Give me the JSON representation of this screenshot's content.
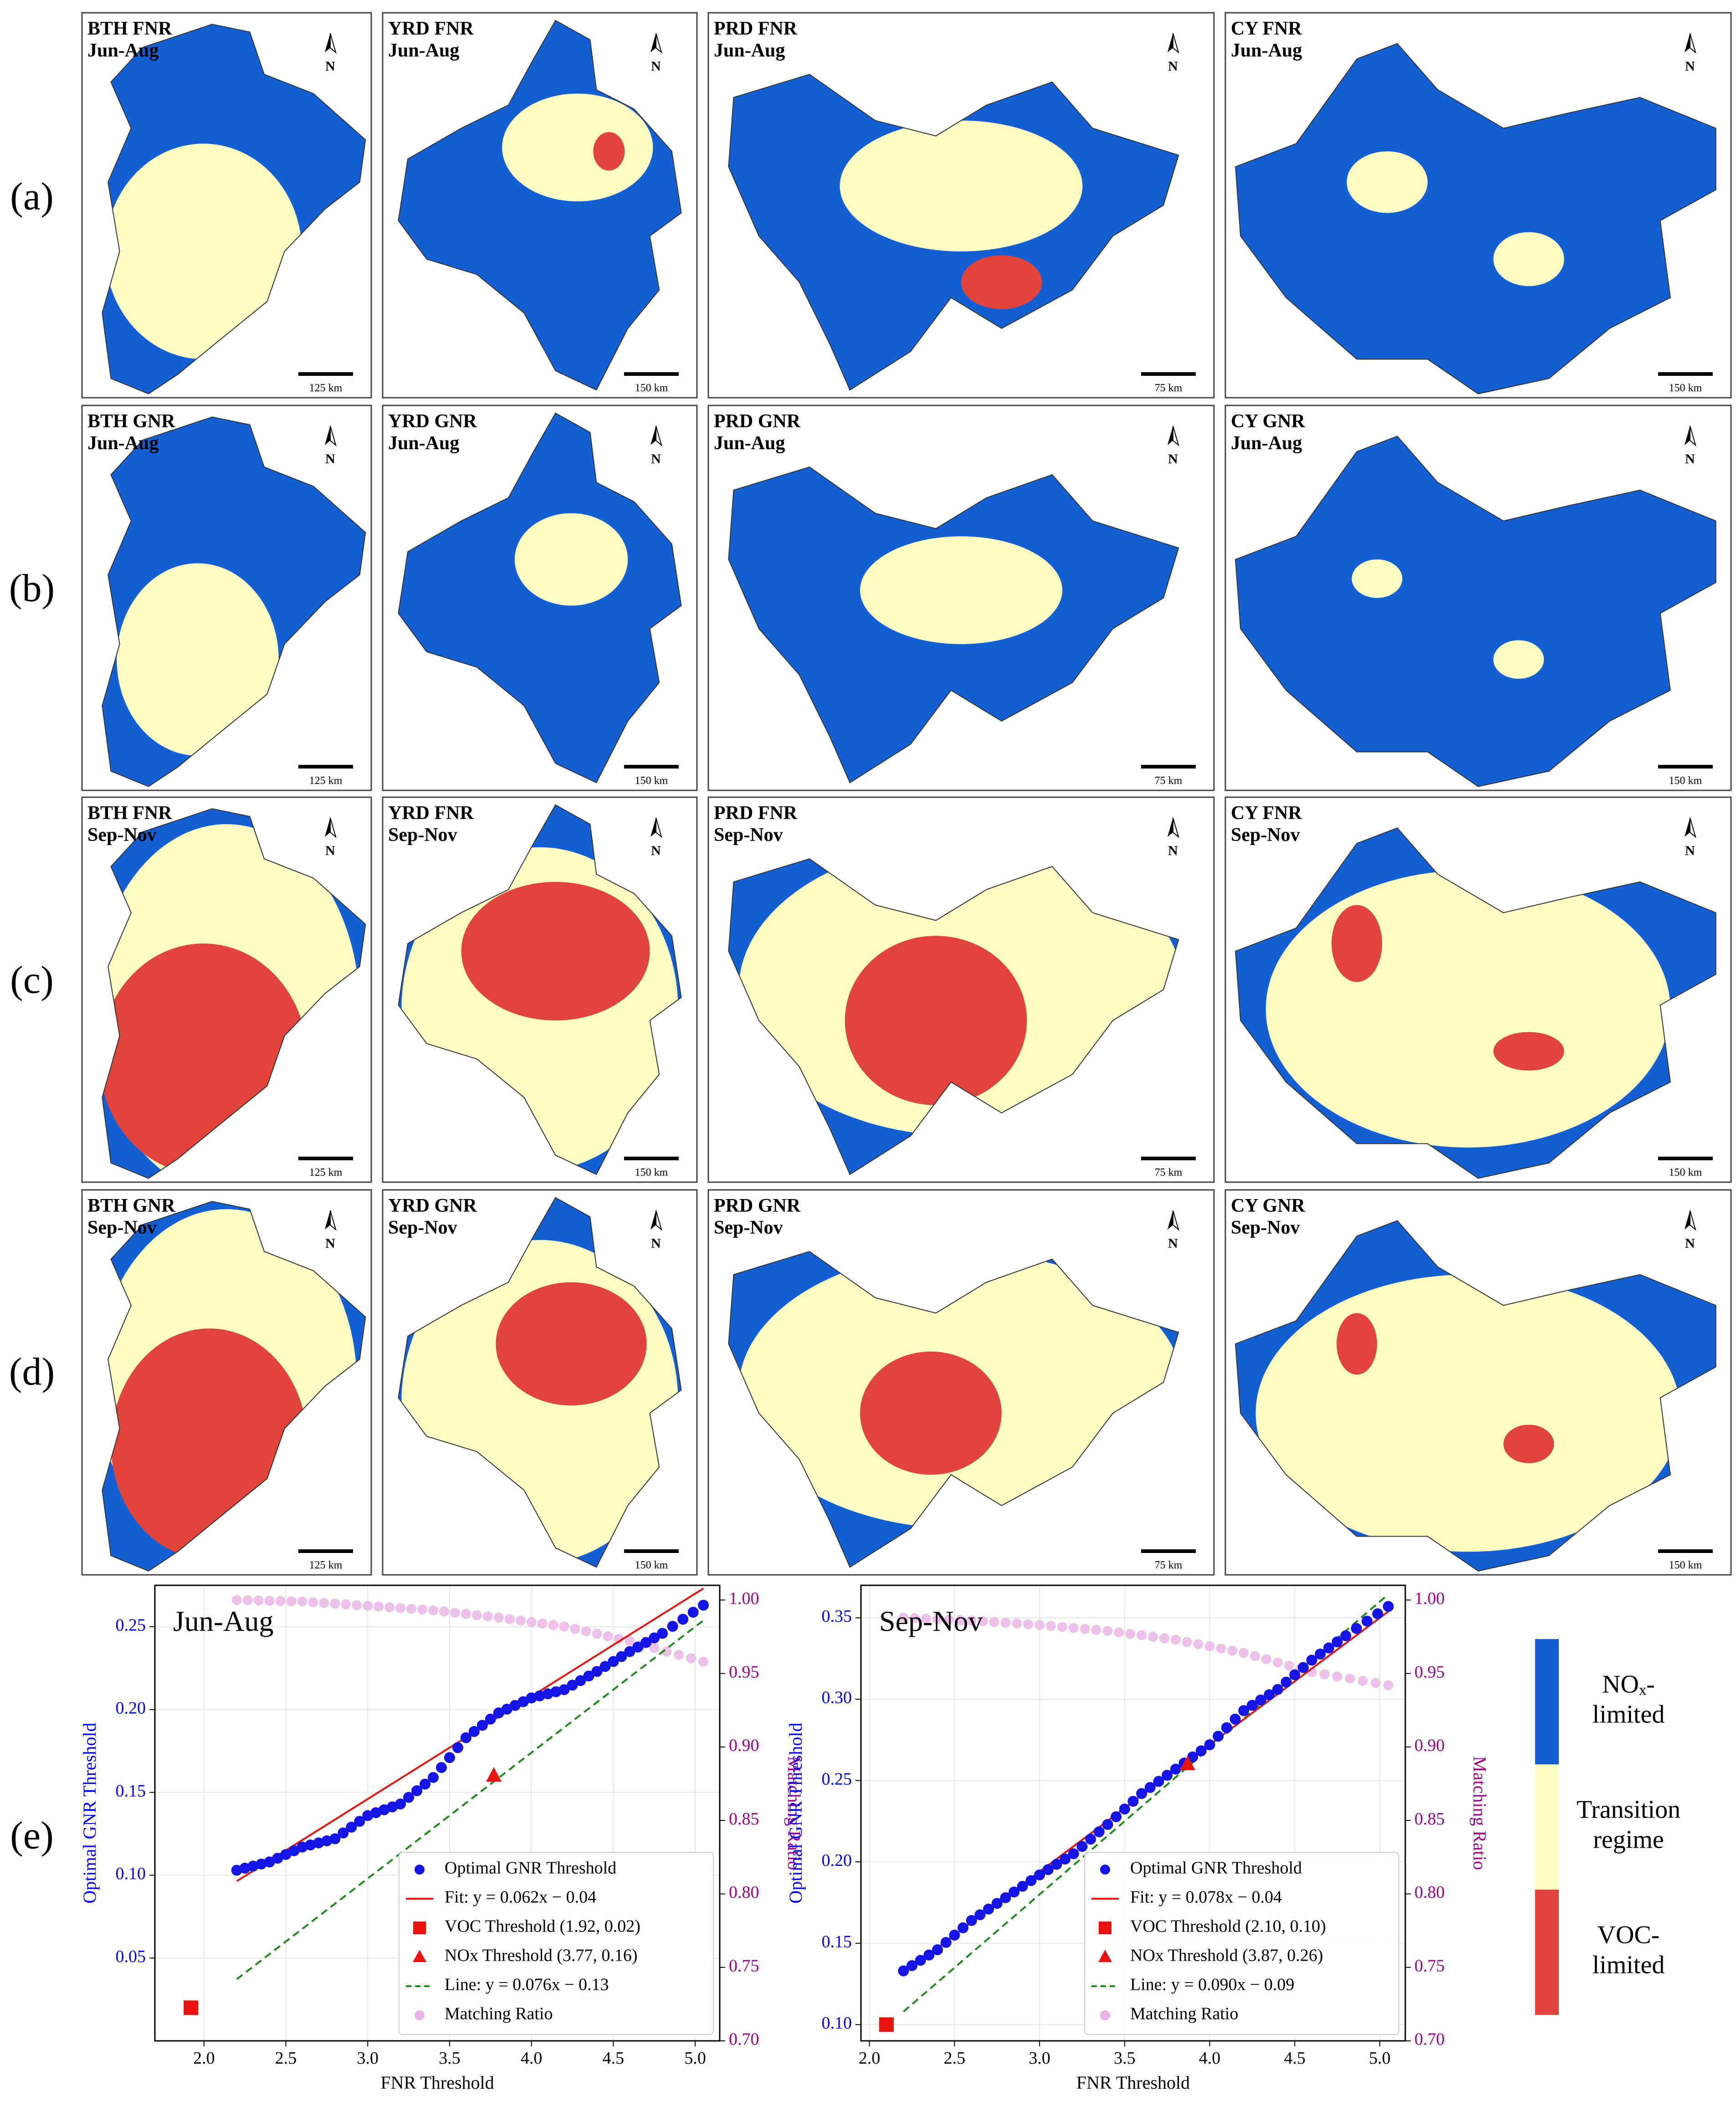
{
  "row_labels": [
    "(a)",
    "(b)",
    "(c)",
    "(d)",
    "(e)"
  ],
  "maps": [
    [
      {
        "region": "BTH",
        "index": "FNR",
        "season": "Jun-Aug",
        "scale": "125 km"
      },
      {
        "region": "YRD",
        "index": "FNR",
        "season": "Jun-Aug",
        "scale": "150 km"
      },
      {
        "region": "PRD",
        "index": "FNR",
        "season": "Jun-Aug",
        "scale": "75 km"
      },
      {
        "region": "CY",
        "index": "FNR",
        "season": "Jun-Aug",
        "scale": "150 km"
      }
    ],
    [
      {
        "region": "BTH",
        "index": "GNR",
        "season": "Jun-Aug",
        "scale": "125 km"
      },
      {
        "region": "YRD",
        "index": "GNR",
        "season": "Jun-Aug",
        "scale": "150 km"
      },
      {
        "region": "PRD",
        "index": "GNR",
        "season": "Jun-Aug",
        "scale": "75 km"
      },
      {
        "region": "CY",
        "index": "GNR",
        "season": "Jun-Aug",
        "scale": "150 km"
      }
    ],
    [
      {
        "region": "BTH",
        "index": "FNR",
        "season": "Sep-Nov",
        "scale": "125 km"
      },
      {
        "region": "YRD",
        "index": "FNR",
        "season": "Sep-Nov",
        "scale": "150 km"
      },
      {
        "region": "PRD",
        "index": "FNR",
        "season": "Sep-Nov",
        "scale": "75 km"
      },
      {
        "region": "CY",
        "index": "FNR",
        "season": "Sep-Nov",
        "scale": "150 km"
      }
    ],
    [
      {
        "region": "BTH",
        "index": "GNR",
        "season": "Sep-Nov",
        "scale": "125 km"
      },
      {
        "region": "YRD",
        "index": "GNR",
        "season": "Sep-Nov",
        "scale": "150 km"
      },
      {
        "region": "PRD",
        "index": "GNR",
        "season": "Sep-Nov",
        "scale": "75 km"
      },
      {
        "region": "CY",
        "index": "GNR",
        "season": "Sep-Nov",
        "scale": "150 km"
      }
    ]
  ],
  "north_label": "N",
  "colors": {
    "nox": "#1260d4",
    "transition": "#fdfdc4",
    "voc": "#e0443a",
    "fit": "#e8130f",
    "line": "#1a8a1a",
    "dots": "#1414e6",
    "ratio": "#e9b3e4",
    "left_axis": "#0000ff",
    "right_axis": "#a0008f"
  },
  "legend_regime": [
    {
      "label": "NOₓ-\nlimited",
      "color": "#1260d4"
    },
    {
      "label": "Transition\nregime",
      "color": "#fdfdc4"
    },
    {
      "label": "VOC-\nlimited",
      "color": "#e0443a"
    }
  ],
  "chart_data": [
    {
      "type": "scatter",
      "title": "Jun-Aug",
      "xlabel": "FNR Threshold",
      "ylabel": "Optimal GNR Threshold",
      "y2label": "Matching Ratio",
      "xlim": [
        1.7,
        5.15
      ],
      "ylim": [
        0.0,
        0.275
      ],
      "y2lim": [
        0.7,
        1.01
      ],
      "xticks": [
        "2.0",
        "2.5",
        "3.0",
        "3.5",
        "4.0",
        "4.5",
        "5.0"
      ],
      "yticks": [
        "0.05",
        "0.10",
        "0.15",
        "0.20",
        "0.25"
      ],
      "y2ticks": [
        "0.70",
        "0.75",
        "0.80",
        "0.85",
        "0.90",
        "0.95",
        "1.00"
      ],
      "grid": true,
      "legend_position": "lower-right",
      "optimal_x": [
        2.2,
        2.4,
        2.6,
        2.8,
        3.0,
        3.2,
        3.4,
        3.6,
        3.8,
        4.0,
        4.2,
        4.4,
        4.6,
        4.8,
        5.05
      ],
      "optimal_y": [
        0.103,
        0.108,
        0.117,
        0.122,
        0.136,
        0.143,
        0.159,
        0.183,
        0.198,
        0.207,
        0.212,
        0.223,
        0.235,
        0.246,
        0.263
      ],
      "fit": {
        "slope": 0.062,
        "intercept": -0.04,
        "x_range": [
          2.2,
          5.05
        ]
      },
      "line": {
        "slope": 0.076,
        "intercept": -0.13,
        "x_range": [
          2.2,
          5.05
        ]
      },
      "voc_threshold": [
        1.92,
        0.02
      ],
      "nox_threshold": [
        3.77,
        0.16
      ],
      "ratio_x": [
        2.2,
        2.6,
        3.0,
        3.4,
        3.8,
        4.2,
        4.6,
        5.05
      ],
      "ratio_y": [
        1.0,
        0.999,
        0.996,
        0.993,
        0.988,
        0.982,
        0.972,
        0.958
      ],
      "legend": [
        "Optimal GNR Threshold",
        "Fit: y = 0.062x − 0.04",
        "VOC Threshold (1.92, 0.02)",
        "NOx Threshold (3.77, 0.16)",
        "Line: y = 0.076x − 0.13",
        "Matching Ratio"
      ]
    },
    {
      "type": "scatter",
      "title": "Sep-Nov",
      "xlabel": "FNR Threshold",
      "ylabel": "Optimal GNR Threshold",
      "y2label": "Matching Ratio",
      "xlim": [
        1.95,
        5.15
      ],
      "ylim": [
        0.09,
        0.37
      ],
      "y2lim": [
        0.7,
        1.01
      ],
      "xticks": [
        "2.0",
        "2.5",
        "3.0",
        "3.5",
        "4.0",
        "4.5",
        "5.0"
      ],
      "yticks": [
        "0.10",
        "0.15",
        "0.20",
        "0.25",
        "0.30",
        "0.35"
      ],
      "y2ticks": [
        "0.70",
        "0.75",
        "0.80",
        "0.85",
        "0.90",
        "0.95",
        "1.00"
      ],
      "grid": true,
      "legend_position": "lower-right",
      "optimal_x": [
        2.2,
        2.4,
        2.6,
        2.8,
        3.0,
        3.2,
        3.4,
        3.6,
        3.8,
        4.0,
        4.2,
        4.4,
        4.6,
        4.8,
        5.05
      ],
      "optimal_y": [
        0.133,
        0.146,
        0.164,
        0.178,
        0.192,
        0.205,
        0.223,
        0.242,
        0.257,
        0.272,
        0.293,
        0.306,
        0.324,
        0.339,
        0.357
      ],
      "fit": {
        "slope": 0.078,
        "intercept": -0.04,
        "x_range": [
          2.2,
          5.05
        ]
      },
      "line": {
        "slope": 0.09,
        "intercept": -0.09,
        "x_range": [
          2.2,
          5.05
        ]
      },
      "voc_threshold": [
        2.1,
        0.1
      ],
      "nox_threshold": [
        3.87,
        0.26
      ],
      "ratio_x": [
        2.2,
        2.6,
        3.0,
        3.4,
        3.8,
        4.2,
        4.6,
        5.05
      ],
      "ratio_y": [
        0.988,
        0.986,
        0.983,
        0.979,
        0.973,
        0.964,
        0.951,
        0.942
      ],
      "legend": [
        "Optimal GNR Threshold",
        "Fit: y = 0.078x − 0.04",
        "VOC Threshold (2.10, 0.10)",
        "NOx Threshold (3.87, 0.26)",
        "Line: y = 0.090x − 0.09",
        "Matching Ratio"
      ]
    }
  ]
}
